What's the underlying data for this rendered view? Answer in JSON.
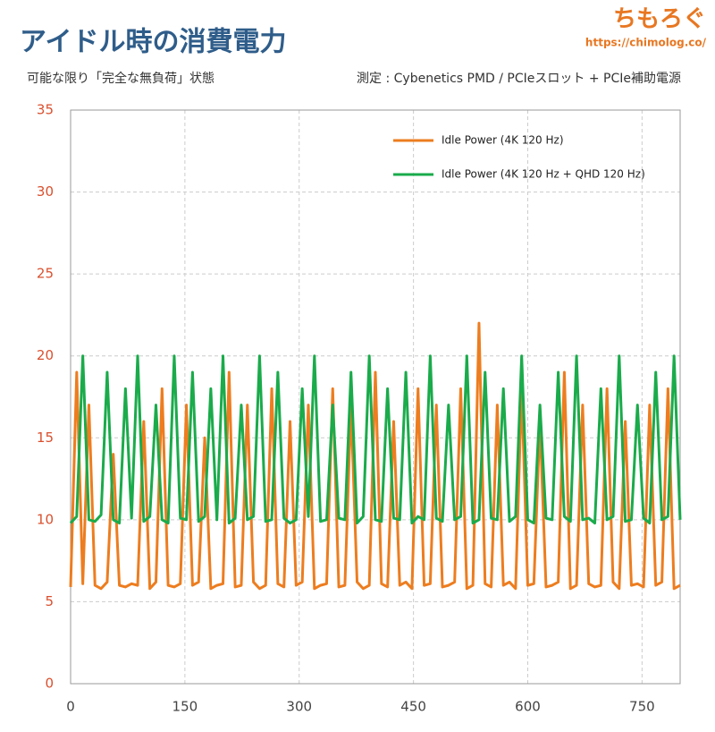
{
  "chart_data": {
    "type": "line",
    "title": "アイドル時の消費電力",
    "subtitle": "可能な限り「完全な無負荷」状態",
    "note": "測定 : Cybenetics PMD / PCIeスロット + PCIe補助電源",
    "logo": "ちもろぐ",
    "logo_url": "https://chimolog.co/",
    "x": [
      0,
      8,
      16,
      24,
      32,
      40,
      48,
      56,
      64,
      72,
      80,
      88,
      96,
      104,
      112,
      120,
      128,
      136,
      144,
      152,
      160,
      168,
      176,
      184,
      192,
      200,
      208,
      216,
      224,
      232,
      240,
      248,
      256,
      264,
      272,
      280,
      288,
      296,
      304,
      312,
      320,
      328,
      336,
      344,
      352,
      360,
      368,
      376,
      384,
      392,
      400,
      408,
      416,
      424,
      432,
      440,
      448,
      456,
      464,
      472,
      480,
      488,
      496,
      504,
      512,
      520,
      528,
      536,
      544,
      552,
      560,
      568,
      576,
      584,
      592,
      600,
      608,
      616,
      624,
      632,
      640,
      648,
      656,
      664,
      672,
      680,
      688,
      696,
      704,
      712,
      720,
      728,
      736,
      744,
      752,
      760,
      768,
      776,
      784,
      792,
      800
    ],
    "series": [
      {
        "name": "Idle Power (4K 120 Hz)",
        "color": "#ed7d1f",
        "values": [
          5.9,
          19,
          6.1,
          17,
          6,
          5.8,
          6.2,
          14,
          6,
          5.9,
          6.1,
          6,
          16,
          5.8,
          6.2,
          18,
          6,
          5.9,
          6.1,
          17,
          6,
          6.2,
          15,
          5.8,
          6,
          6.1,
          19,
          5.9,
          6,
          17,
          6.2,
          5.8,
          6,
          18,
          6.1,
          5.9,
          16,
          6,
          6.2,
          17,
          5.8,
          6,
          6.1,
          18,
          5.9,
          6,
          17,
          6.2,
          5.8,
          6,
          19,
          6.1,
          5.9,
          16,
          6,
          6.2,
          5.8,
          18,
          6,
          6.1,
          17,
          5.9,
          6,
          6.2,
          18,
          5.8,
          6,
          22,
          6.1,
          5.9,
          17,
          6,
          6.2,
          5.8,
          18,
          6,
          6.1,
          16,
          5.9,
          6,
          6.2,
          19,
          5.8,
          6,
          17,
          6.1,
          5.9,
          6,
          18,
          6.2,
          5.8,
          16,
          6,
          6.1,
          5.9,
          17,
          6,
          6.2,
          18,
          5.8,
          6
        ]
      },
      {
        "name": "Idle Power (4K 120 Hz + QHD 120 Hz)",
        "color": "#1aab4b",
        "values": [
          9.8,
          10.2,
          20,
          10,
          9.9,
          10.3,
          19,
          10,
          9.8,
          18,
          10.1,
          20,
          9.9,
          10.2,
          17,
          10,
          9.8,
          20,
          10.1,
          10,
          19,
          9.9,
          10.2,
          18,
          10,
          20,
          9.8,
          10.1,
          17,
          10,
          10.2,
          20,
          9.9,
          10,
          19,
          10.1,
          9.8,
          10,
          18,
          10.2,
          20,
          9.9,
          10,
          17,
          10.1,
          10,
          19,
          9.8,
          10.2,
          20,
          10,
          9.9,
          18,
          10.1,
          10,
          19,
          9.8,
          10.2,
          10,
          20,
          10.1,
          9.9,
          17,
          10,
          10.2,
          20,
          9.8,
          10,
          19,
          10.1,
          10,
          18,
          9.9,
          10.2,
          20,
          10,
          9.8,
          17,
          10.1,
          10,
          19,
          10.2,
          9.9,
          20,
          10,
          10.1,
          9.8,
          18,
          10,
          10.2,
          20,
          9.9,
          10,
          17,
          10.1,
          9.8,
          19,
          10,
          10.2,
          20,
          10
        ]
      }
    ],
    "xlim": [
      0,
      800
    ],
    "xticks": [
      0,
      150,
      300,
      450,
      600,
      750
    ],
    "ylim": [
      0,
      35
    ],
    "yticks": [
      0,
      5,
      10,
      15,
      20,
      25,
      30,
      35
    ],
    "grid": true,
    "legend": "top"
  }
}
